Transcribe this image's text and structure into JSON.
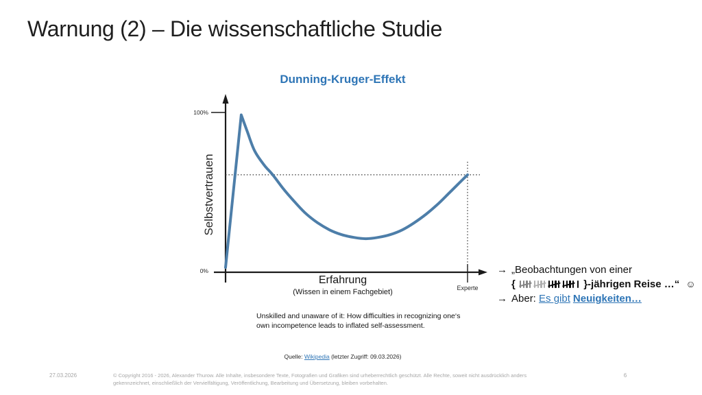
{
  "slide": {
    "title": "Warnung (2) – Die wissenschaftliche Studie",
    "footer": {
      "date": "27.03.2026",
      "copyright_lines": [
        "© Copyright 2016 - 2026, Alexander Thurow. Alle Inhalte, insbesondere Texte, Fotografien und Grafiken sind urheberrechtlich geschützt. Alle Rechte, soweit nicht ausdrücklich anders",
        "gekennzeichnet, einschließlich der Vervielfältigung, Veröffentlichung, Bearbeitung und Übersetzung, bleiben vorbehalten."
      ],
      "page_number": "6"
    }
  },
  "chart_data": {
    "type": "line",
    "title": "Dunning-Kruger-Effekt",
    "ylabel": "Selbstvertrauen",
    "xlabel": "Erfahrung",
    "xlabel_sub": "(Wissen in einem Fachgebiet)",
    "x_end_label": "Experte",
    "y_tick_top": "100%",
    "y_tick_bottom": "0%",
    "xlim": [
      0,
      100
    ],
    "ylim": [
      0,
      100
    ],
    "grid": false,
    "line_color": "#4d7ea9",
    "series": [
      {
        "name": "Selbstvertrauen",
        "points": [
          [
            0,
            3
          ],
          [
            6.5,
            98.5
          ],
          [
            9,
            88
          ],
          [
            12,
            76
          ],
          [
            16,
            67
          ],
          [
            19.5,
            61
          ],
          [
            24,
            52
          ],
          [
            28,
            45
          ],
          [
            33,
            37
          ],
          [
            38,
            31
          ],
          [
            43,
            26.5
          ],
          [
            48,
            23.5
          ],
          [
            53,
            21.8
          ],
          [
            58,
            21
          ],
          [
            63,
            21.8
          ],
          [
            68,
            23.5
          ],
          [
            73,
            26.5
          ],
          [
            78,
            31
          ],
          [
            83,
            36.5
          ],
          [
            88,
            43
          ],
          [
            92,
            49
          ],
          [
            96,
            55
          ],
          [
            100,
            61
          ]
        ]
      }
    ],
    "annotations": {
      "peak_at_x_pct": 6.5,
      "valley_at_x_pct": 58,
      "expert_confidence_pct": 61,
      "dotted_horizontal_at_y": 61,
      "dotted_vertical_at_x": 100
    }
  },
  "caption": {
    "lines": [
      "Unskilled and unaware of it: How difficulties in recognizing one‘s",
      "own incompetence leads to inflated self-assessment."
    ]
  },
  "source": {
    "prefix": "Quelle:",
    "link_text": "Wikipedia",
    "suffix": "(letzter Zugriff: 09.03.2026)"
  },
  "notes": {
    "arrow_glyph": "→",
    "item1": {
      "line1": "„Beobachtungen von einer",
      "brace_open": "{",
      "tally": {
        "groups": [
          5,
          5,
          5,
          5,
          1
        ],
        "group_opacities": [
          0.5,
          0.32,
          1,
          1,
          1
        ],
        "total": 21
      },
      "line2_close": "}-jährigen Reise …“",
      "smiley": "☺"
    },
    "item2": {
      "label": "Aber:",
      "link_text": "Es gibt",
      "link_text_bold": "Neuigkeiten…"
    }
  },
  "colors": {
    "accent_blue": "#2e75b6",
    "curve_blue": "#4d7ea9",
    "footer_gray": "#a6a6a6"
  }
}
